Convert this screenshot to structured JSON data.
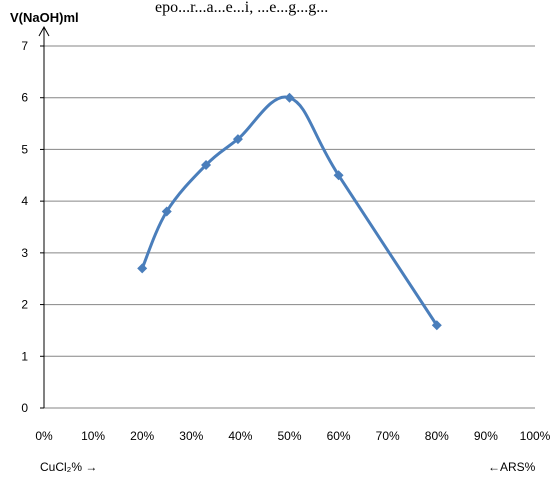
{
  "header_snippet": "epo...r...a...e...i, ...e...g...g...",
  "chart_data": {
    "type": "line",
    "title": "",
    "ylabel": "V(NaOH)ml",
    "xlabel_left": "CuCl₂% →",
    "xlabel_right": "←ARS%",
    "xlim": [
      0,
      100
    ],
    "ylim": [
      0,
      7
    ],
    "x_ticks": [
      "0%",
      "10%",
      "20%",
      "30%",
      "40%",
      "50%",
      "60%",
      "70%",
      "80%",
      "90%",
      "100%"
    ],
    "y_ticks": [
      "0",
      "1",
      "2",
      "3",
      "4",
      "5",
      "6",
      "7"
    ],
    "grid": true,
    "line_color": "#4a7ebb",
    "series": [
      {
        "x": [
          20,
          25,
          33,
          39.5,
          50,
          60,
          80
        ],
        "y": [
          2.7,
          3.8,
          4.7,
          5.2,
          6.0,
          4.5,
          1.6
        ]
      }
    ]
  }
}
